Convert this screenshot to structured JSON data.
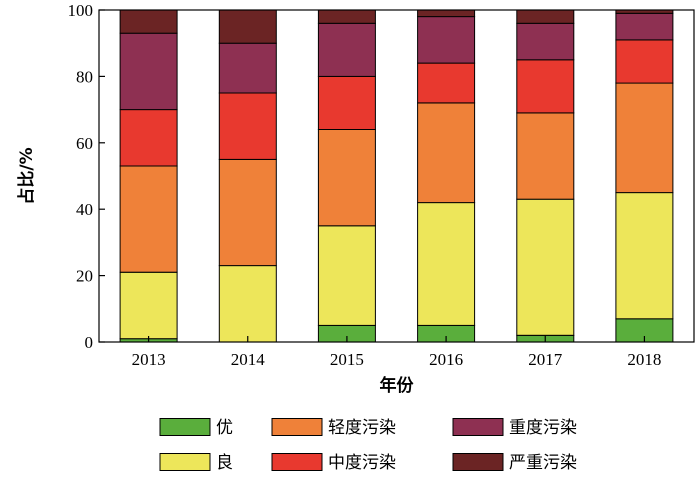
{
  "chart_data": {
    "type": "bar",
    "stacked": true,
    "categories": [
      "2013",
      "2014",
      "2015",
      "2016",
      "2017",
      "2018"
    ],
    "xlabel": "年份",
    "ylabel": "占比/%",
    "ylim": [
      0,
      100
    ],
    "yticks": [
      0,
      20,
      40,
      60,
      80,
      100
    ],
    "grid": false,
    "legend_position": "bottom",
    "series": [
      {
        "name": "优",
        "color": "#5aae3c",
        "values": [
          1,
          0,
          5,
          5,
          2,
          7
        ]
      },
      {
        "name": "良",
        "color": "#ede65a",
        "values": [
          20,
          23,
          30,
          37,
          41,
          38
        ]
      },
      {
        "name": "轻度污染",
        "color": "#ef8139",
        "values": [
          32,
          32,
          29,
          30,
          26,
          33
        ]
      },
      {
        "name": "中度污染",
        "color": "#e8392f",
        "values": [
          17,
          20,
          16,
          12,
          16,
          13
        ]
      },
      {
        "name": "重度污染",
        "color": "#8e3052",
        "values": [
          23,
          15,
          16,
          14,
          11,
          8
        ]
      },
      {
        "name": "严重污染",
        "color": "#6b2424",
        "values": [
          7,
          10,
          4,
          2,
          4,
          1
        ]
      }
    ]
  }
}
